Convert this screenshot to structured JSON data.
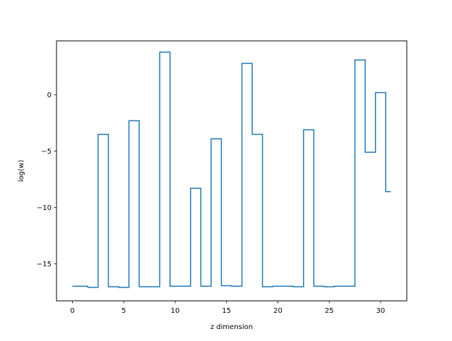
{
  "chart_data": {
    "type": "line",
    "drawstyle": "steps-mid",
    "xlabel": "z dimension",
    "ylabel": "log(w)",
    "xlim": [
      -1.55,
      32.55
    ],
    "ylim": [
      -18.3,
      4.8
    ],
    "xticks": [
      0,
      5,
      10,
      15,
      20,
      25,
      30
    ],
    "yticks": [
      -15,
      -10,
      -5,
      0
    ],
    "ytick_labels": [
      "−15",
      "−10",
      "−5",
      "0"
    ],
    "grid": false,
    "line_color": "#1f77b4",
    "series": [
      {
        "x": [
          0,
          1,
          2,
          3,
          4,
          5,
          6,
          7,
          8,
          9,
          10,
          11,
          12,
          13,
          14,
          15,
          16,
          17,
          18,
          19,
          20,
          21,
          22,
          23,
          24,
          25,
          26,
          27,
          28,
          29,
          30,
          31
        ],
        "values": [
          -17.0,
          -17.0,
          -17.1,
          -3.5,
          -17.05,
          -17.1,
          -2.3,
          -17.05,
          -17.05,
          3.8,
          -17.0,
          -17.0,
          -8.3,
          -17.0,
          -3.9,
          -16.95,
          -17.0,
          2.8,
          -3.5,
          -17.05,
          -17.0,
          -17.0,
          -17.05,
          -3.1,
          -17.0,
          -17.05,
          -17.0,
          -17.0,
          3.1,
          -5.1,
          0.2,
          -8.6
        ]
      }
    ]
  }
}
